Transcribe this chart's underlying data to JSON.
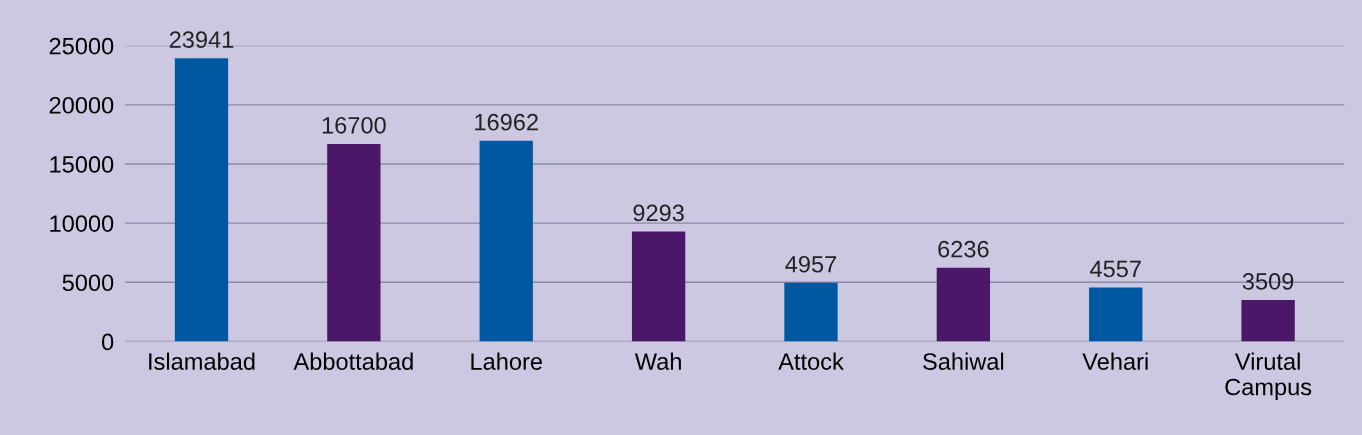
{
  "chart_data": {
    "type": "bar",
    "categories": [
      "Islamabad",
      "Abbottabad",
      "Lahore",
      "Wah",
      "Attock",
      "Sahiwal",
      "Vehari",
      "Virutal\nCampus"
    ],
    "values": [
      23941,
      16700,
      16962,
      9293,
      4957,
      6236,
      4557,
      3509
    ],
    "colors": [
      "#0058a0",
      "#4b1769",
      "#0058a0",
      "#4b1769",
      "#0058a0",
      "#4b1769",
      "#0058a0",
      "#4b1769"
    ],
    "ylim": [
      0,
      25000
    ],
    "yticks": [
      0,
      5000,
      10000,
      15000,
      20000,
      25000
    ],
    "grid": "y",
    "data_labels": true
  }
}
